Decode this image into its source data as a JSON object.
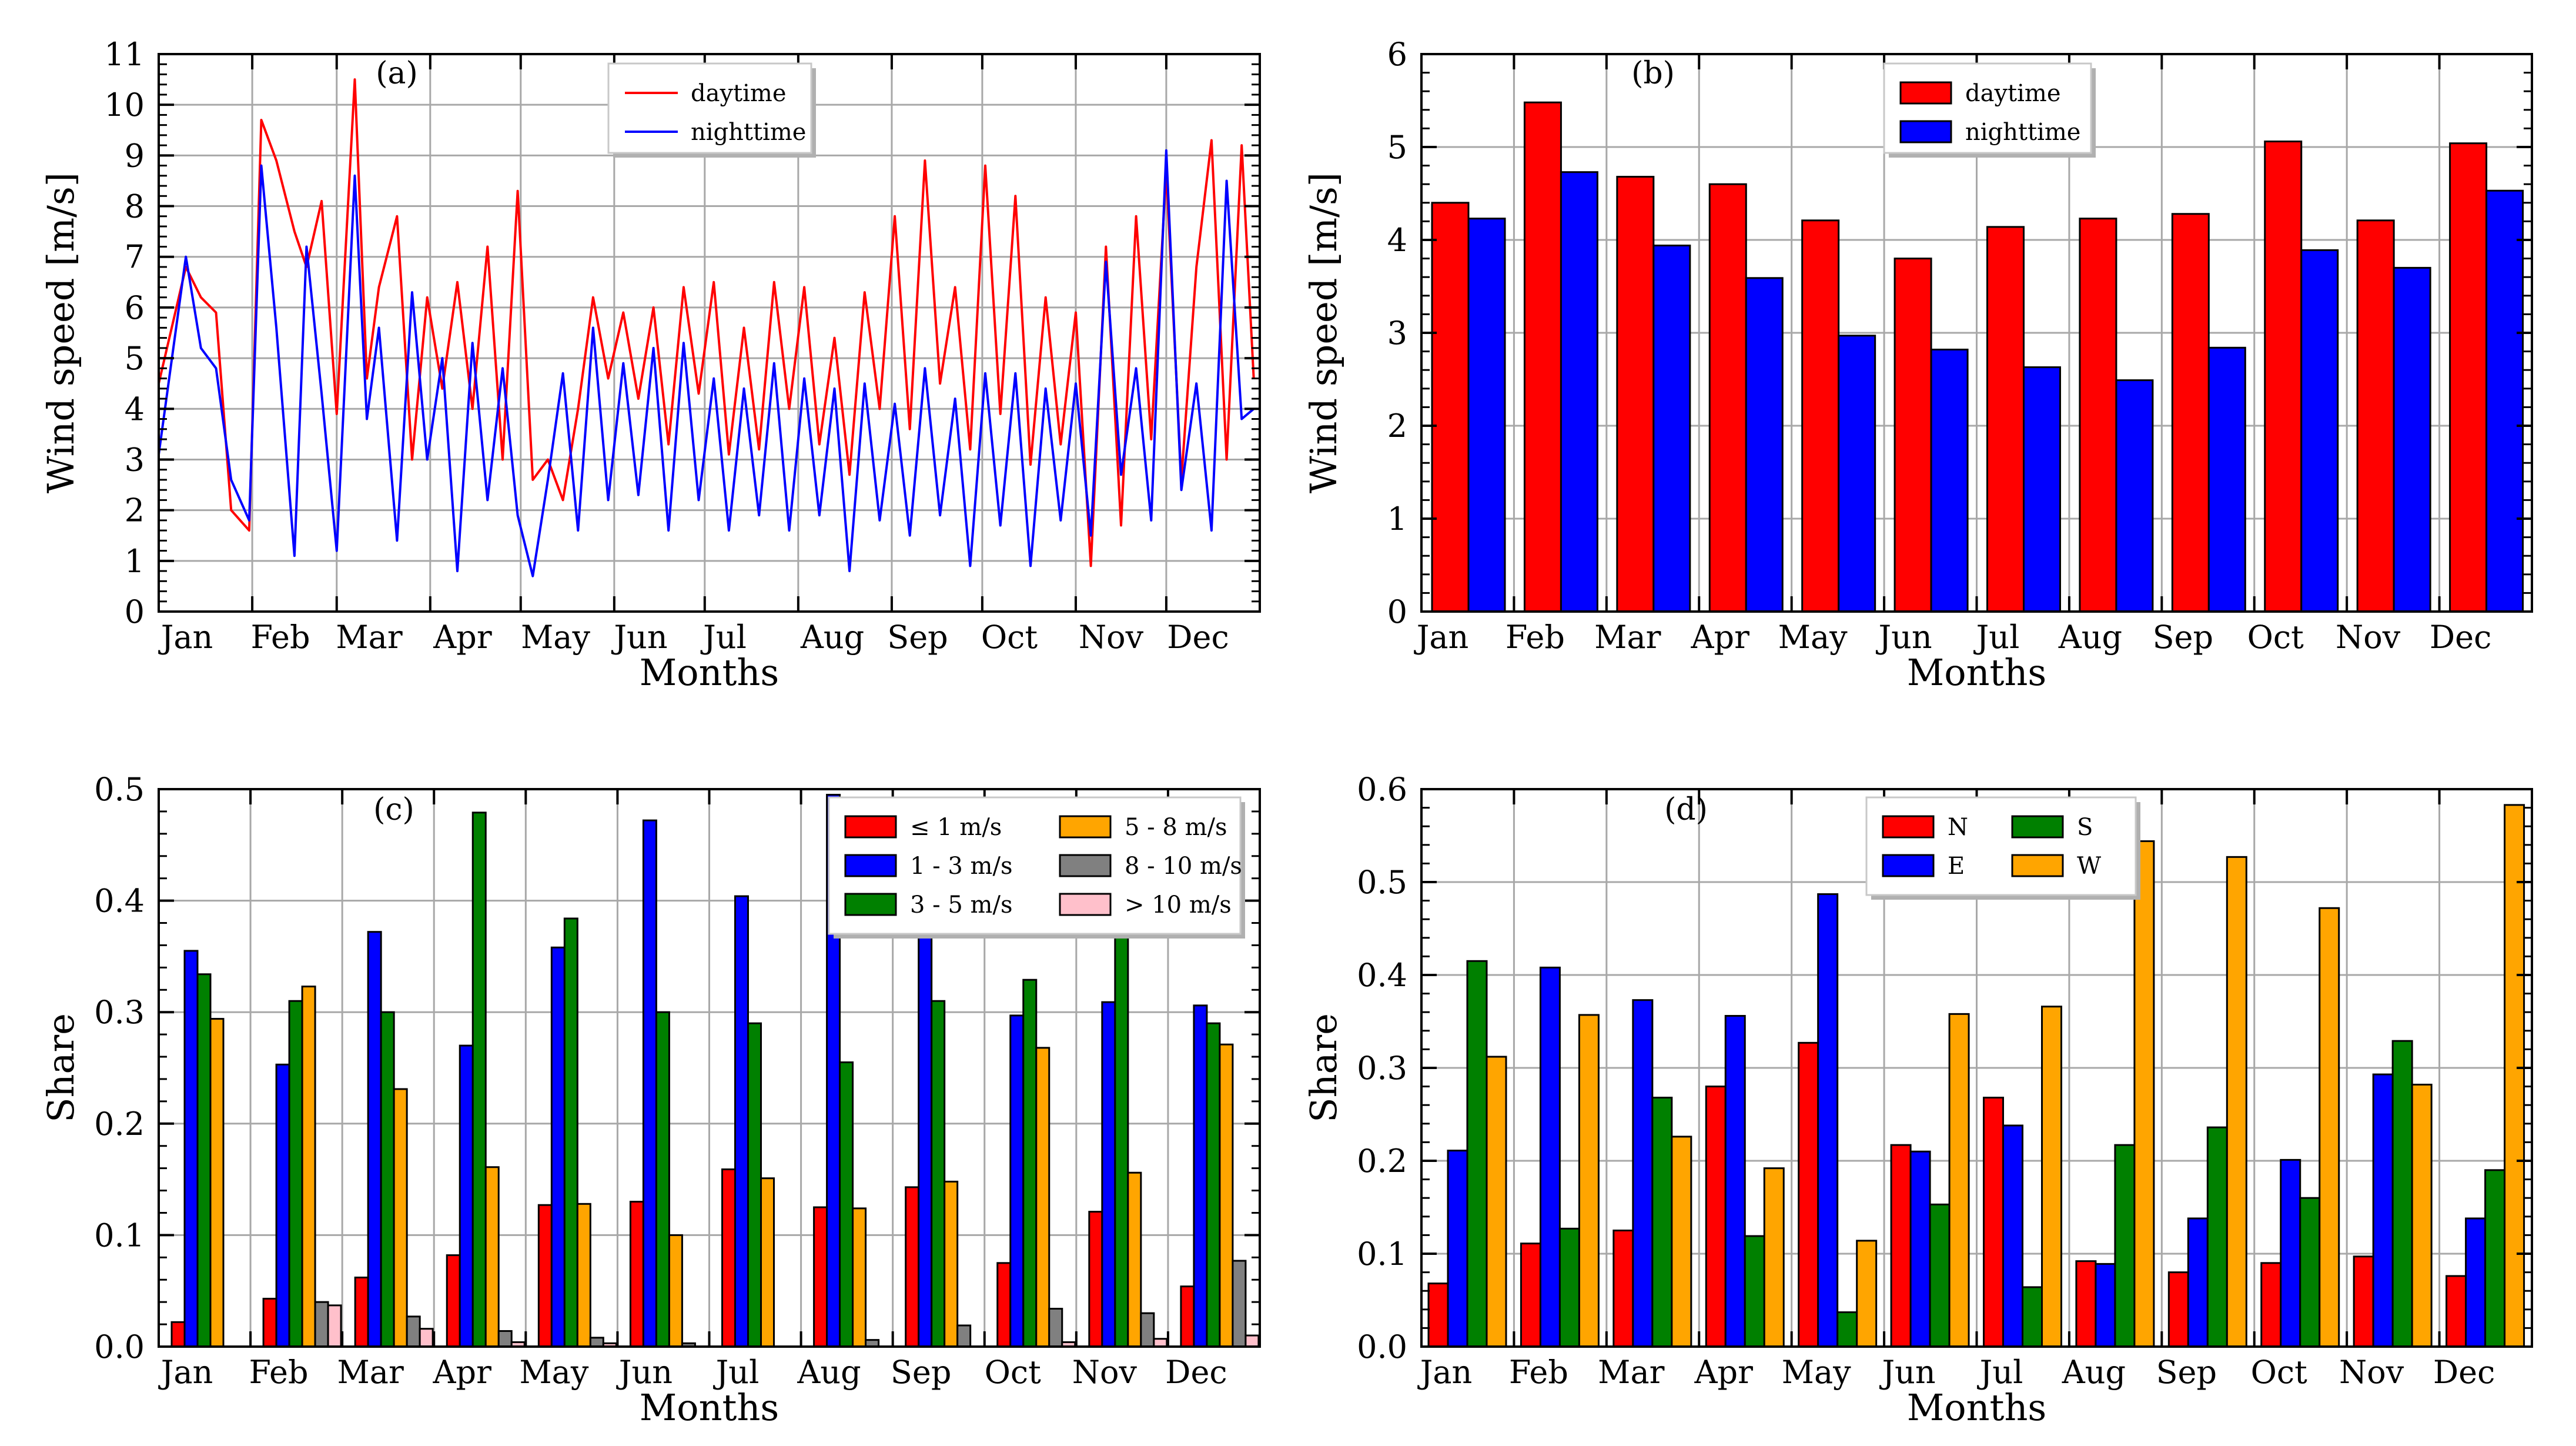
{
  "colors": {
    "daytime": "#ff0000",
    "nighttime": "#0000ff",
    "red": "#ff0000",
    "blue": "#0000ff",
    "green": "#008000",
    "orange": "#ffa500",
    "gray": "#808080",
    "pink": "#ffc0cb"
  },
  "chart_data": [
    {
      "panel": "(a)",
      "type": "line",
      "xlabel": "Months",
      "ylabel": "Wind speed [m/s]",
      "ylim": [
        0,
        11
      ],
      "yticks": [
        0,
        1,
        2,
        3,
        4,
        5,
        6,
        7,
        8,
        9,
        10,
        11
      ],
      "grid": true,
      "legend_position": "top-center",
      "month_labels": [
        "Jan",
        "Feb",
        "Mar",
        "Apr",
        "May",
        "Jun",
        "Jul",
        "Aug",
        "Sep",
        "Oct",
        "Nov",
        "Dec"
      ],
      "x_unit": "day of year",
      "xlim": [
        1,
        366
      ],
      "series": [
        {
          "name": "daytime",
          "color": "red",
          "x": [
            1,
            10,
            15,
            20,
            25,
            31,
            35,
            40,
            46,
            50,
            55,
            60,
            66,
            70,
            74,
            80,
            85,
            90,
            95,
            100,
            105,
            110,
            115,
            120,
            125,
            130,
            135,
            140,
            145,
            150,
            155,
            160,
            165,
            170,
            175,
            180,
            185,
            190,
            195,
            200,
            205,
            210,
            215,
            220,
            225,
            230,
            235,
            240,
            245,
            250,
            255,
            260,
            265,
            270,
            275,
            280,
            285,
            290,
            295,
            300,
            305,
            310,
            315,
            320,
            325,
            330,
            335,
            340,
            345,
            350,
            355,
            360,
            364
          ],
          "values": [
            4.5,
            6.8,
            6.2,
            5.9,
            2.0,
            1.6,
            9.7,
            8.9,
            7.5,
            6.8,
            8.1,
            3.9,
            10.5,
            4.6,
            6.4,
            7.8,
            3.0,
            6.2,
            4.4,
            6.5,
            4.0,
            7.2,
            3.0,
            8.3,
            2.6,
            3.0,
            2.2,
            4.0,
            6.2,
            4.6,
            5.9,
            4.2,
            6.0,
            3.3,
            6.4,
            4.3,
            6.5,
            3.1,
            5.6,
            3.2,
            6.5,
            4.0,
            6.4,
            3.3,
            5.4,
            2.7,
            6.3,
            4.0,
            7.8,
            3.6,
            8.9,
            4.5,
            6.4,
            3.2,
            8.8,
            3.9,
            8.2,
            2.9,
            6.2,
            3.3,
            5.9,
            0.9,
            7.2,
            1.7,
            7.8,
            3.4,
            8.7,
            2.6,
            6.8,
            9.3,
            3.0,
            9.2,
            4.6
          ]
        },
        {
          "name": "nighttime",
          "color": "blue",
          "x": [
            1,
            10,
            15,
            20,
            25,
            31,
            35,
            40,
            46,
            50,
            55,
            60,
            66,
            70,
            74,
            80,
            85,
            90,
            95,
            100,
            105,
            110,
            115,
            120,
            125,
            130,
            135,
            140,
            145,
            150,
            155,
            160,
            165,
            170,
            175,
            180,
            185,
            190,
            195,
            200,
            205,
            210,
            215,
            220,
            225,
            230,
            235,
            240,
            245,
            250,
            255,
            260,
            265,
            270,
            275,
            280,
            285,
            290,
            295,
            300,
            305,
            310,
            315,
            320,
            325,
            330,
            335,
            340,
            345,
            350,
            355,
            360,
            364
          ],
          "values": [
            3.1,
            7.0,
            5.2,
            4.8,
            2.6,
            1.8,
            8.8,
            5.6,
            1.1,
            7.2,
            4.3,
            1.2,
            8.6,
            3.8,
            5.6,
            1.4,
            6.3,
            3.0,
            5.0,
            0.8,
            5.3,
            2.2,
            4.8,
            1.9,
            0.7,
            2.6,
            4.7,
            1.6,
            5.6,
            2.2,
            4.9,
            2.3,
            5.2,
            1.6,
            5.3,
            2.2,
            4.6,
            1.6,
            4.4,
            1.9,
            4.9,
            1.6,
            4.6,
            1.9,
            4.4,
            0.8,
            4.5,
            1.8,
            4.1,
            1.5,
            4.8,
            1.9,
            4.2,
            0.9,
            4.7,
            1.7,
            4.7,
            0.9,
            4.4,
            1.8,
            4.5,
            1.5,
            6.9,
            2.7,
            4.8,
            1.8,
            9.1,
            2.4,
            4.5,
            1.6,
            8.5,
            3.8,
            4.0
          ]
        }
      ]
    },
    {
      "panel": "(b)",
      "type": "bar",
      "xlabel": "Months",
      "ylabel": "Wind speed [m/s]",
      "ylim": [
        0,
        6
      ],
      "yticks": [
        0,
        1,
        2,
        3,
        4,
        5,
        6
      ],
      "grid": true,
      "legend_position": "top-center",
      "categories": [
        "Jan",
        "Feb",
        "Mar",
        "Apr",
        "May",
        "Jun",
        "Jul",
        "Aug",
        "Sep",
        "Oct",
        "Nov",
        "Dec"
      ],
      "series": [
        {
          "name": "daytime",
          "color": "red",
          "values": [
            4.4,
            5.48,
            4.68,
            4.6,
            4.21,
            3.8,
            4.14,
            4.23,
            4.28,
            5.06,
            4.21,
            5.04
          ]
        },
        {
          "name": "nighttime",
          "color": "blue",
          "values": [
            4.23,
            4.73,
            3.94,
            3.59,
            2.97,
            2.82,
            2.63,
            2.49,
            2.84,
            3.89,
            3.7,
            4.53
          ]
        }
      ]
    },
    {
      "panel": "(c)",
      "type": "bar",
      "xlabel": "Months",
      "ylabel": "Share",
      "ylim": [
        0,
        0.5
      ],
      "yticks": [
        0.0,
        0.1,
        0.2,
        0.3,
        0.4,
        0.5
      ],
      "grid": true,
      "legend_position": "top-right",
      "categories": [
        "Jan",
        "Feb",
        "Mar",
        "Apr",
        "May",
        "Jun",
        "Jul",
        "Aug",
        "Sep",
        "Oct",
        "Nov",
        "Dec"
      ],
      "series": [
        {
          "name": "≤ 1 m/s",
          "color": "red",
          "values": [
            0.022,
            0.043,
            0.062,
            0.082,
            0.127,
            0.13,
            0.159,
            0.125,
            0.143,
            0.075,
            0.121,
            0.054
          ]
        },
        {
          "name": "1 - 3 m/s",
          "color": "blue",
          "values": [
            0.355,
            0.253,
            0.372,
            0.27,
            0.358,
            0.472,
            0.404,
            0.495,
            0.387,
            0.297,
            0.309,
            0.306
          ]
        },
        {
          "name": "3 - 5 m/s",
          "color": "green",
          "values": [
            0.334,
            0.31,
            0.3,
            0.479,
            0.384,
            0.3,
            0.29,
            0.255,
            0.31,
            0.329,
            0.389,
            0.29
          ]
        },
        {
          "name": "5 - 8 m/s",
          "color": "orange",
          "values": [
            0.294,
            0.323,
            0.231,
            0.161,
            0.128,
            0.1,
            0.151,
            0.124,
            0.148,
            0.268,
            0.156,
            0.271
          ]
        },
        {
          "name": "8 - 10 m/s",
          "color": "gray",
          "values": [
            0.0,
            0.04,
            0.027,
            0.014,
            0.008,
            0.003,
            0.0,
            0.006,
            0.019,
            0.034,
            0.03,
            0.077
          ]
        },
        {
          "name": "> 10 m/s",
          "color": "pink",
          "values": [
            0.0,
            0.037,
            0.016,
            0.004,
            0.003,
            0.0,
            0.0,
            0.0,
            0.0,
            0.004,
            0.007,
            0.01
          ]
        }
      ]
    },
    {
      "panel": "(d)",
      "type": "bar",
      "xlabel": "Months",
      "ylabel": "Share",
      "ylim": [
        0,
        0.6
      ],
      "yticks": [
        0.0,
        0.1,
        0.2,
        0.3,
        0.4,
        0.5,
        0.6
      ],
      "grid": true,
      "legend_position": "top-center",
      "categories": [
        "Jan",
        "Feb",
        "Mar",
        "Apr",
        "May",
        "Jun",
        "Jul",
        "Aug",
        "Sep",
        "Oct",
        "Nov",
        "Dec"
      ],
      "series": [
        {
          "name": "N",
          "color": "red",
          "values": [
            0.068,
            0.111,
            0.125,
            0.28,
            0.327,
            0.217,
            0.268,
            0.092,
            0.08,
            0.09,
            0.097,
            0.076
          ]
        },
        {
          "name": "E",
          "color": "blue",
          "values": [
            0.211,
            0.408,
            0.373,
            0.356,
            0.487,
            0.21,
            0.238,
            0.089,
            0.138,
            0.201,
            0.293,
            0.138
          ]
        },
        {
          "name": "S",
          "color": "green",
          "values": [
            0.415,
            0.127,
            0.268,
            0.119,
            0.037,
            0.153,
            0.064,
            0.217,
            0.236,
            0.16,
            0.329,
            0.19
          ]
        },
        {
          "name": "W",
          "color": "orange",
          "values": [
            0.312,
            0.357,
            0.226,
            0.192,
            0.114,
            0.358,
            0.366,
            0.544,
            0.527,
            0.472,
            0.282,
            0.583
          ]
        }
      ]
    }
  ]
}
